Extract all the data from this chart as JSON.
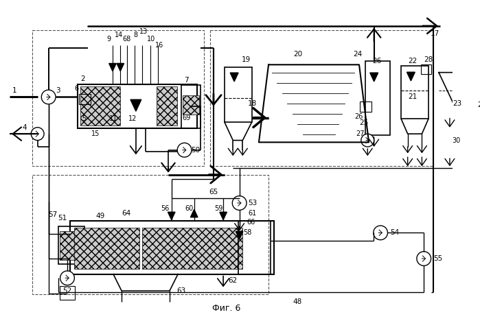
{
  "title": "Фиг. 6",
  "bg_color": "#ffffff",
  "lc": "#000000"
}
